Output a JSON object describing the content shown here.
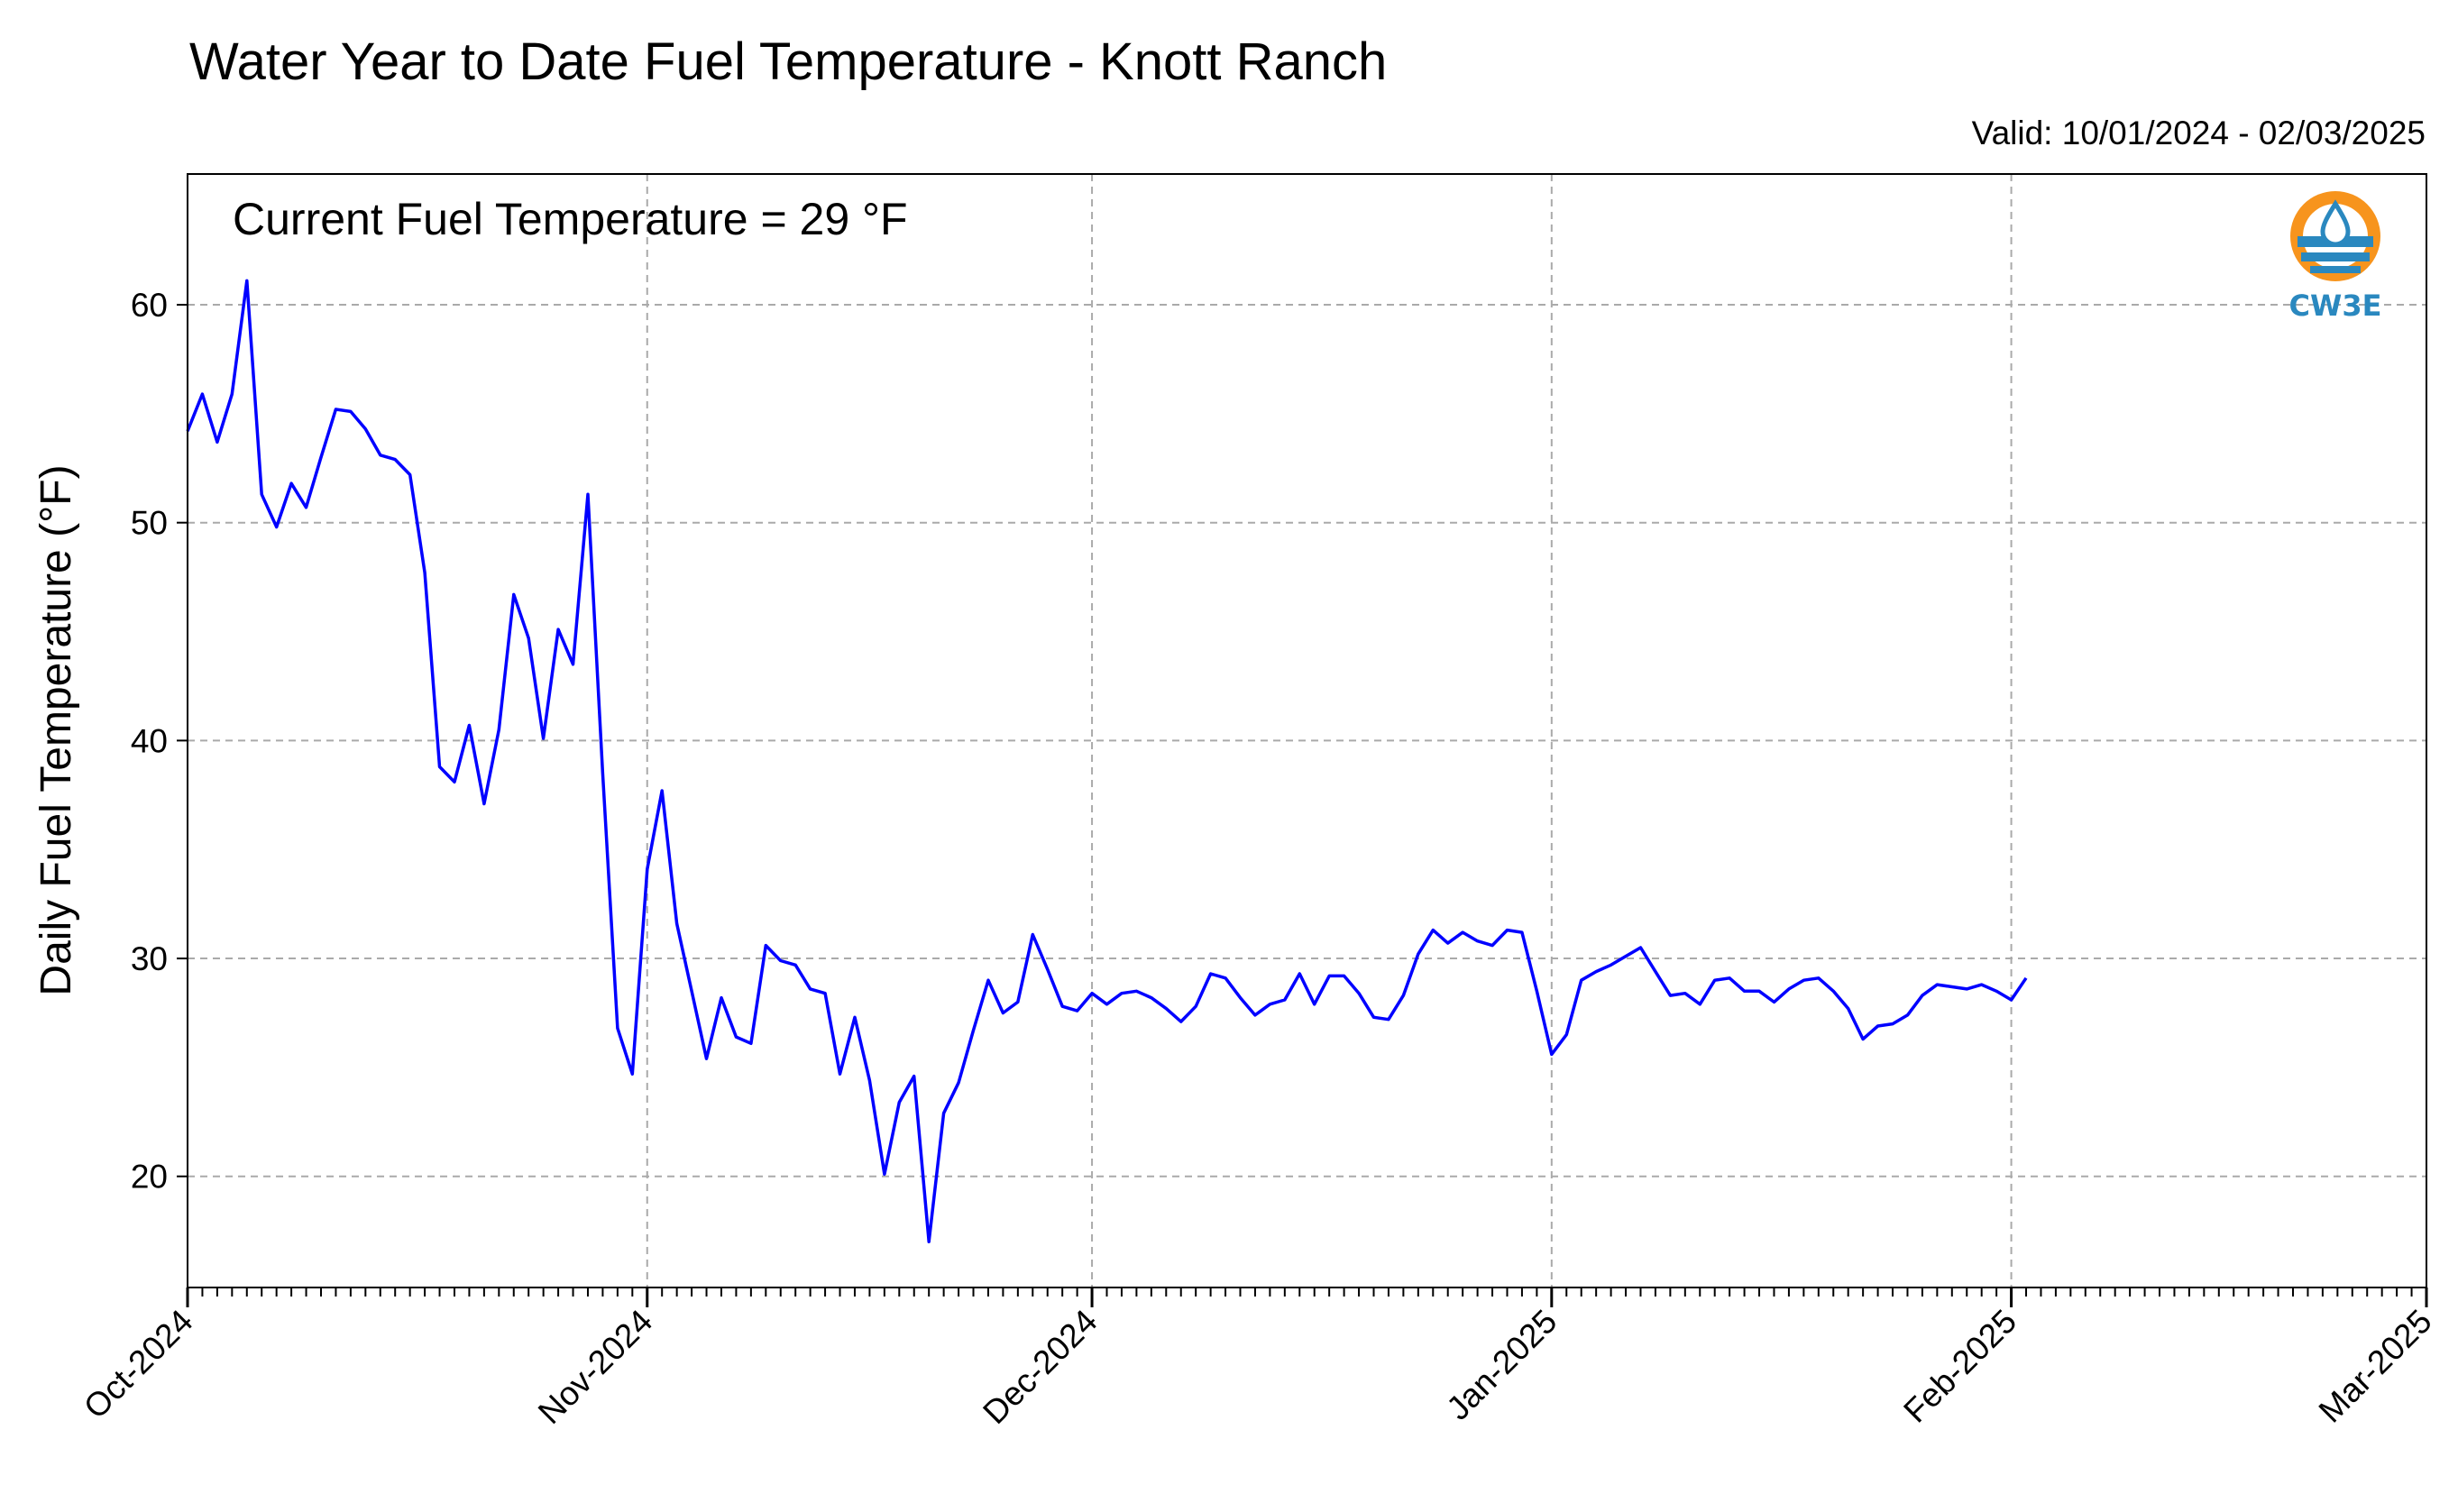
{
  "chart_data": {
    "type": "line",
    "title": "Water Year to Date Fuel Temperature - Knott Ranch",
    "subtitle": "Valid: 10/01/2024 - 02/03/2025",
    "annotation": "Current Fuel Temperature = 29 °F",
    "ylabel": "Daily Fuel Temperature (°F)",
    "xlabel": "",
    "ylim": [
      14.9,
      66.0
    ],
    "xlim": [
      "2024-10-01",
      "2025-03-01"
    ],
    "y_ticks": [
      20,
      30,
      40,
      50,
      60
    ],
    "x_ticks": [
      "Oct-2024",
      "Nov-2024",
      "Dec-2024",
      "Jan-2025",
      "Feb-2025",
      "Mar-2025"
    ],
    "x_tick_dates": [
      "2024-10-01",
      "2024-11-01",
      "2024-12-01",
      "2025-01-01",
      "2025-02-01",
      "2025-03-01"
    ],
    "grid": true,
    "line_color": "#0000ff",
    "series": [
      {
        "x": [
          "2024-10-01",
          "2024-10-02",
          "2024-10-03",
          "2024-10-04",
          "2024-10-05",
          "2024-10-06",
          "2024-10-07",
          "2024-10-08",
          "2024-10-09",
          "2024-10-10",
          "2024-10-11",
          "2024-10-12",
          "2024-10-13",
          "2024-10-14",
          "2024-10-15",
          "2024-10-16",
          "2024-10-17",
          "2024-10-18",
          "2024-10-19",
          "2024-10-20",
          "2024-10-21",
          "2024-10-22",
          "2024-10-23",
          "2024-10-24",
          "2024-10-25",
          "2024-10-26",
          "2024-10-27",
          "2024-10-28",
          "2024-10-29",
          "2024-10-30",
          "2024-10-31",
          "2024-11-01",
          "2024-11-02",
          "2024-11-03",
          "2024-11-04",
          "2024-11-05",
          "2024-11-06",
          "2024-11-07",
          "2024-11-08",
          "2024-11-09",
          "2024-11-10",
          "2024-11-11",
          "2024-11-12",
          "2024-11-13",
          "2024-11-14",
          "2024-11-15",
          "2024-11-16",
          "2024-11-17",
          "2024-11-18",
          "2024-11-19",
          "2024-11-20",
          "2024-11-21",
          "2024-11-22",
          "2024-11-23",
          "2024-11-24",
          "2024-11-25",
          "2024-11-26",
          "2024-11-27",
          "2024-11-28",
          "2024-11-29",
          "2024-11-30",
          "2024-12-01",
          "2024-12-02",
          "2024-12-03",
          "2024-12-04",
          "2024-12-05",
          "2024-12-06",
          "2024-12-07",
          "2024-12-08",
          "2024-12-09",
          "2024-12-10",
          "2024-12-11",
          "2024-12-12",
          "2024-12-13",
          "2024-12-14",
          "2024-12-15",
          "2024-12-16",
          "2024-12-17",
          "2024-12-18",
          "2024-12-19",
          "2024-12-20",
          "2024-12-21",
          "2024-12-22",
          "2024-12-23",
          "2024-12-24",
          "2024-12-25",
          "2024-12-26",
          "2024-12-27",
          "2024-12-28",
          "2024-12-29",
          "2024-12-30",
          "2024-12-31",
          "2025-01-01",
          "2025-01-02",
          "2025-01-03",
          "2025-01-04",
          "2025-01-05",
          "2025-01-06",
          "2025-01-07",
          "2025-01-08",
          "2025-01-09",
          "2025-01-10",
          "2025-01-11",
          "2025-01-12",
          "2025-01-13",
          "2025-01-14",
          "2025-01-15",
          "2025-01-16",
          "2025-01-17",
          "2025-01-18",
          "2025-01-19",
          "2025-01-20",
          "2025-01-21",
          "2025-01-22",
          "2025-01-23",
          "2025-01-24",
          "2025-01-25",
          "2025-01-26",
          "2025-01-27",
          "2025-01-28",
          "2025-01-29",
          "2025-01-30",
          "2025-01-31",
          "2025-02-01",
          "2025-02-02"
        ],
        "values": [
          54.2,
          55.9,
          53.7,
          55.9,
          61.1,
          51.3,
          49.8,
          51.8,
          50.7,
          53.0,
          55.2,
          55.1,
          54.3,
          53.1,
          52.9,
          52.2,
          47.7,
          38.8,
          38.1,
          40.7,
          37.1,
          40.5,
          46.7,
          44.7,
          40.1,
          45.1,
          43.5,
          51.3,
          38.5,
          26.8,
          24.7,
          34.1,
          37.7,
          31.6,
          28.5,
          25.4,
          28.2,
          26.4,
          26.1,
          30.6,
          29.9,
          29.7,
          28.6,
          28.4,
          24.7,
          27.3,
          24.4,
          20.1,
          23.4,
          24.6,
          17.0,
          22.9,
          24.3,
          26.7,
          29.0,
          27.5,
          28.0,
          31.1,
          29.5,
          27.8,
          27.6,
          28.4,
          27.9,
          28.4,
          28.5,
          28.2,
          27.7,
          27.1,
          27.8,
          29.3,
          29.1,
          28.2,
          27.4,
          27.9,
          28.1,
          29.3,
          27.9,
          29.2,
          29.2,
          28.4,
          27.3,
          27.2,
          28.3,
          30.2,
          31.3,
          30.7,
          31.2,
          30.8,
          30.6,
          31.3,
          31.2,
          28.5,
          25.6,
          26.5,
          29.0,
          29.4,
          29.7,
          30.1,
          30.5,
          29.4,
          28.3,
          28.4,
          27.9,
          29.0,
          29.1,
          28.5,
          28.5,
          28.0,
          28.6,
          29.0,
          29.1,
          28.5,
          27.7,
          26.3,
          26.9,
          27.0,
          27.4,
          28.3,
          28.8,
          28.7,
          28.6,
          28.8,
          28.5,
          28.1,
          29.1
        ]
      }
    ]
  },
  "logo": {
    "text": "CW3E",
    "colors": {
      "sun": "#f7941d",
      "water": "#2a88bf",
      "drop": "#2a88bf"
    }
  }
}
